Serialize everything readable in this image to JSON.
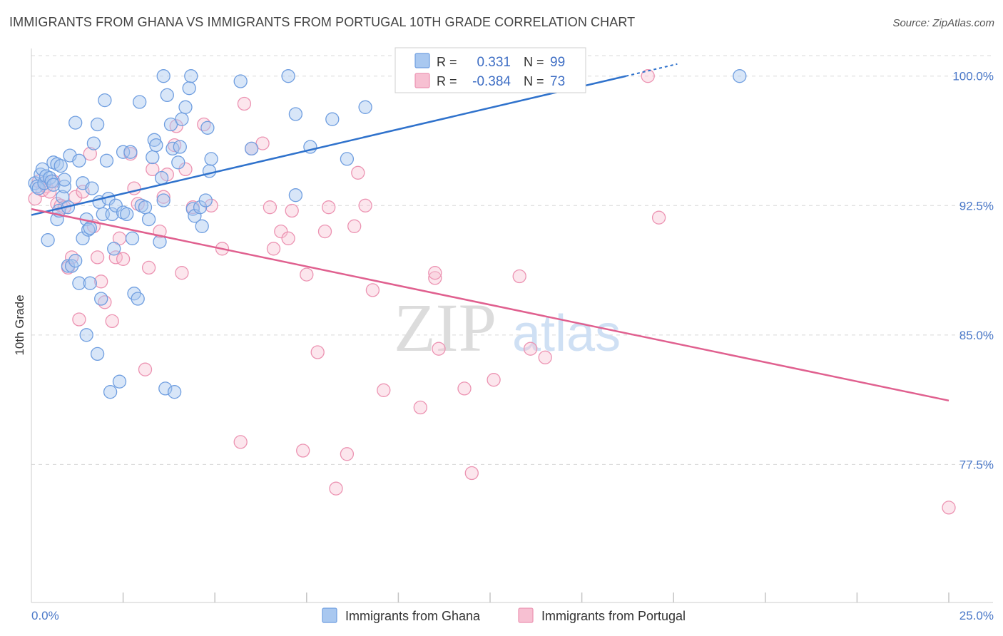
{
  "title": "IMMIGRANTS FROM GHANA VS IMMIGRANTS FROM PORTUGAL 10TH GRADE CORRELATION CHART",
  "source": "Source: ZipAtlas.com",
  "watermark": {
    "zip": "ZIP",
    "atlas": "atlas"
  },
  "colors": {
    "ghana_fill": "#a9c8f0",
    "ghana_stroke": "#6f9ee0",
    "ghana_line": "#2f72cc",
    "portugal_fill": "#f7c0d2",
    "portugal_stroke": "#ec93b2",
    "portugal_line": "#e0608f",
    "tick": "#4a78c8",
    "grid": "#d8d8d8"
  },
  "legend": {
    "rows": [
      {
        "r_label": "R =",
        "r_value": "0.331",
        "n_label": "N =",
        "n_value": "99"
      },
      {
        "r_label": "R =",
        "r_value": "-0.384",
        "n_label": "N =",
        "n_value": "73"
      }
    ]
  },
  "chart_data": {
    "type": "scatter",
    "title": "IMMIGRANTS FROM GHANA VS IMMIGRANTS FROM PORTUGAL 10TH GRADE CORRELATION CHART",
    "xlabel": "",
    "ylabel": "10th Grade",
    "xlim": [
      0,
      25
    ],
    "ylim": [
      69.5,
      101.6
    ],
    "x_tick_labels": [
      "0.0%",
      "25.0%"
    ],
    "y_ticks": [
      77.5,
      85.0,
      92.5,
      100.0
    ],
    "y_tick_labels": [
      "77.5%",
      "85.0%",
      "92.5%",
      "100.0%"
    ],
    "grid": true,
    "legend_position": "top-center",
    "series": [
      {
        "name": "Immigrants from Ghana",
        "r": 0.331,
        "n": 99,
        "trend": {
          "x": [
            0,
            16.2
          ],
          "y": [
            91.95,
            100.0
          ]
        },
        "trend_dashed": {
          "x": [
            16.2,
            17.6
          ],
          "y": [
            100.0,
            100.7
          ]
        },
        "points": [
          [
            0.1,
            93.8
          ],
          [
            0.15,
            93.6
          ],
          [
            0.2,
            93.5
          ],
          [
            0.25,
            94.3
          ],
          [
            0.3,
            94.6
          ],
          [
            0.35,
            93.8
          ],
          [
            0.4,
            94.2
          ],
          [
            0.45,
            90.5
          ],
          [
            0.5,
            94.1
          ],
          [
            0.55,
            93.9
          ],
          [
            0.6,
            93.7
          ],
          [
            0.6,
            95.0
          ],
          [
            0.7,
            94.9
          ],
          [
            0.7,
            91.7
          ],
          [
            0.75,
            92.2
          ],
          [
            0.8,
            94.8
          ],
          [
            0.85,
            93.0
          ],
          [
            0.9,
            93.6
          ],
          [
            0.9,
            94.0
          ],
          [
            1.0,
            89.0
          ],
          [
            1.0,
            92.4
          ],
          [
            1.05,
            95.4
          ],
          [
            1.1,
            89.0
          ],
          [
            1.2,
            97.3
          ],
          [
            1.2,
            89.3
          ],
          [
            1.3,
            95.1
          ],
          [
            1.3,
            88.0
          ],
          [
            1.4,
            93.8
          ],
          [
            1.4,
            90.6
          ],
          [
            1.5,
            85.0
          ],
          [
            1.5,
            91.7
          ],
          [
            1.55,
            91.1
          ],
          [
            1.6,
            91.2
          ],
          [
            1.6,
            88.0
          ],
          [
            1.65,
            93.5
          ],
          [
            1.7,
            96.1
          ],
          [
            1.8,
            97.2
          ],
          [
            1.8,
            83.9
          ],
          [
            1.85,
            92.7
          ],
          [
            1.9,
            87.1
          ],
          [
            1.95,
            92.0
          ],
          [
            2.0,
            98.6
          ],
          [
            2.05,
            95.1
          ],
          [
            2.1,
            92.9
          ],
          [
            2.15,
            81.7
          ],
          [
            2.2,
            92.0
          ],
          [
            2.25,
            90.0
          ],
          [
            2.3,
            92.5
          ],
          [
            2.4,
            82.3
          ],
          [
            2.5,
            92.1
          ],
          [
            2.5,
            95.6
          ],
          [
            2.6,
            92.0
          ],
          [
            2.7,
            95.6
          ],
          [
            2.75,
            90.6
          ],
          [
            2.8,
            87.4
          ],
          [
            2.9,
            87.1
          ],
          [
            2.95,
            98.5
          ],
          [
            3.0,
            92.5
          ],
          [
            3.1,
            92.4
          ],
          [
            3.2,
            91.7
          ],
          [
            3.3,
            95.3
          ],
          [
            3.35,
            96.3
          ],
          [
            3.4,
            96.0
          ],
          [
            3.5,
            90.4
          ],
          [
            3.55,
            94.1
          ],
          [
            3.6,
            92.8
          ],
          [
            3.6,
            100.0
          ],
          [
            3.65,
            81.9
          ],
          [
            3.7,
            98.9
          ],
          [
            3.8,
            97.2
          ],
          [
            3.85,
            95.8
          ],
          [
            3.9,
            81.7
          ],
          [
            4.0,
            95.0
          ],
          [
            4.05,
            95.9
          ],
          [
            4.1,
            97.5
          ],
          [
            4.2,
            98.2
          ],
          [
            4.3,
            99.3
          ],
          [
            4.35,
            100.0
          ],
          [
            4.4,
            92.3
          ],
          [
            4.45,
            91.9
          ],
          [
            4.6,
            92.4
          ],
          [
            4.65,
            91.3
          ],
          [
            4.75,
            92.8
          ],
          [
            4.8,
            97.0
          ],
          [
            4.85,
            94.5
          ],
          [
            4.9,
            95.2
          ],
          [
            5.7,
            99.7
          ],
          [
            6.0,
            95.8
          ],
          [
            7.0,
            100.0
          ],
          [
            7.2,
            97.8
          ],
          [
            7.2,
            93.1
          ],
          [
            7.6,
            95.9
          ],
          [
            8.2,
            97.5
          ],
          [
            8.6,
            95.2
          ],
          [
            9.1,
            98.2
          ],
          [
            19.3,
            100.0
          ]
        ]
      },
      {
        "name": "Immigrants from Portugal",
        "r": -0.384,
        "n": 73,
        "trend": {
          "x": [
            0,
            25
          ],
          "y": [
            92.3,
            81.2
          ]
        },
        "points": [
          [
            0.1,
            92.9
          ],
          [
            0.2,
            93.9
          ],
          [
            0.3,
            93.4
          ],
          [
            0.4,
            93.6
          ],
          [
            0.5,
            93.3
          ],
          [
            0.6,
            93.9
          ],
          [
            0.7,
            92.6
          ],
          [
            0.8,
            92.5
          ],
          [
            0.9,
            92.4
          ],
          [
            1.0,
            88.9
          ],
          [
            1.1,
            89.5
          ],
          [
            1.2,
            93.0
          ],
          [
            1.3,
            85.9
          ],
          [
            1.4,
            93.3
          ],
          [
            1.6,
            95.5
          ],
          [
            1.7,
            91.3
          ],
          [
            1.8,
            89.5
          ],
          [
            1.9,
            88.1
          ],
          [
            2.0,
            86.9
          ],
          [
            2.2,
            85.8
          ],
          [
            2.3,
            89.5
          ],
          [
            2.4,
            90.6
          ],
          [
            2.5,
            89.4
          ],
          [
            2.7,
            95.5
          ],
          [
            2.8,
            93.5
          ],
          [
            2.9,
            92.6
          ],
          [
            3.1,
            83.0
          ],
          [
            3.2,
            88.9
          ],
          [
            3.3,
            94.6
          ],
          [
            3.5,
            91.0
          ],
          [
            3.6,
            93.0
          ],
          [
            3.7,
            94.3
          ],
          [
            3.9,
            96.0
          ],
          [
            3.95,
            97.1
          ],
          [
            4.1,
            88.6
          ],
          [
            4.2,
            94.6
          ],
          [
            4.4,
            92.4
          ],
          [
            4.7,
            97.2
          ],
          [
            4.9,
            92.5
          ],
          [
            5.2,
            90.0
          ],
          [
            5.7,
            78.8
          ],
          [
            5.8,
            98.4
          ],
          [
            6.0,
            95.8
          ],
          [
            6.3,
            96.1
          ],
          [
            6.5,
            92.4
          ],
          [
            6.6,
            90.0
          ],
          [
            6.8,
            91.0
          ],
          [
            7.0,
            90.6
          ],
          [
            7.1,
            92.2
          ],
          [
            7.4,
            78.3
          ],
          [
            7.5,
            88.5
          ],
          [
            7.8,
            84.0
          ],
          [
            8.0,
            91.0
          ],
          [
            8.1,
            92.4
          ],
          [
            8.3,
            76.1
          ],
          [
            8.6,
            78.1
          ],
          [
            8.8,
            91.3
          ],
          [
            8.9,
            94.4
          ],
          [
            9.1,
            92.5
          ],
          [
            9.3,
            87.6
          ],
          [
            9.6,
            81.8
          ],
          [
            10.6,
            80.8
          ],
          [
            11.0,
            88.3
          ],
          [
            11.0,
            88.6
          ],
          [
            11.1,
            84.2
          ],
          [
            11.8,
            81.9
          ],
          [
            12.0,
            77.0
          ],
          [
            12.6,
            82.4
          ],
          [
            13.3,
            88.4
          ],
          [
            13.6,
            84.2
          ],
          [
            14.0,
            83.7
          ],
          [
            14.0,
            100.0
          ],
          [
            16.8,
            100.0
          ],
          [
            17.1,
            91.8
          ],
          [
            25.0,
            75.0
          ]
        ]
      }
    ]
  },
  "bottom_legend": [
    "Immigrants from Ghana",
    "Immigrants from Portugal"
  ]
}
